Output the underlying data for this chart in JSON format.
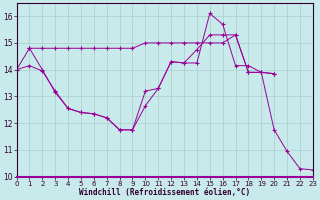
{
  "xlabel": "Windchill (Refroidissement éolien,°C)",
  "bg_color": "#c8eaea",
  "line_color": "#990099",
  "grid_color": "#aacccc",
  "axis_color": "#330033",
  "xlim": [
    0,
    23
  ],
  "ylim": [
    10,
    16.5
  ],
  "yticks": [
    10,
    11,
    12,
    13,
    14,
    15,
    16
  ],
  "xticks": [
    0,
    1,
    2,
    3,
    4,
    5,
    6,
    7,
    8,
    9,
    10,
    11,
    12,
    13,
    14,
    15,
    16,
    17,
    18,
    19,
    20,
    21,
    22,
    23
  ],
  "series1_x": [
    0,
    1,
    2,
    3,
    4,
    5,
    6,
    7,
    8,
    9,
    10,
    11,
    12,
    13,
    14,
    15,
    16,
    17,
    18,
    19,
    20
  ],
  "series1_y": [
    14.0,
    14.8,
    14.8,
    14.8,
    14.8,
    14.8,
    14.8,
    14.8,
    14.8,
    14.8,
    15.0,
    15.0,
    15.0,
    15.0,
    15.0,
    15.0,
    15.0,
    15.3,
    13.9,
    13.9,
    13.85
  ],
  "series2_x": [
    0,
    1,
    2,
    3,
    4,
    5,
    6,
    7,
    8,
    9,
    10,
    11,
    12,
    13,
    14,
    15,
    16,
    17,
    18,
    19,
    20,
    21,
    22,
    23
  ],
  "series2_y": [
    14.0,
    14.15,
    13.95,
    13.2,
    12.55,
    12.4,
    12.35,
    12.2,
    11.75,
    11.75,
    13.2,
    13.3,
    14.3,
    14.25,
    14.25,
    16.1,
    15.7,
    14.15,
    14.15,
    13.9,
    11.75,
    10.95,
    10.3,
    10.25
  ],
  "series3_x": [
    1,
    2,
    3,
    4,
    5,
    6,
    7,
    8,
    9,
    10,
    11,
    12,
    13,
    14,
    15,
    16,
    17,
    18,
    19,
    20
  ],
  "series3_y": [
    14.8,
    14.0,
    13.15,
    12.55,
    12.4,
    12.35,
    12.2,
    11.75,
    11.75,
    12.65,
    13.3,
    14.3,
    14.25,
    14.75,
    15.3,
    15.3,
    15.3,
    13.9,
    13.9,
    13.85
  ]
}
